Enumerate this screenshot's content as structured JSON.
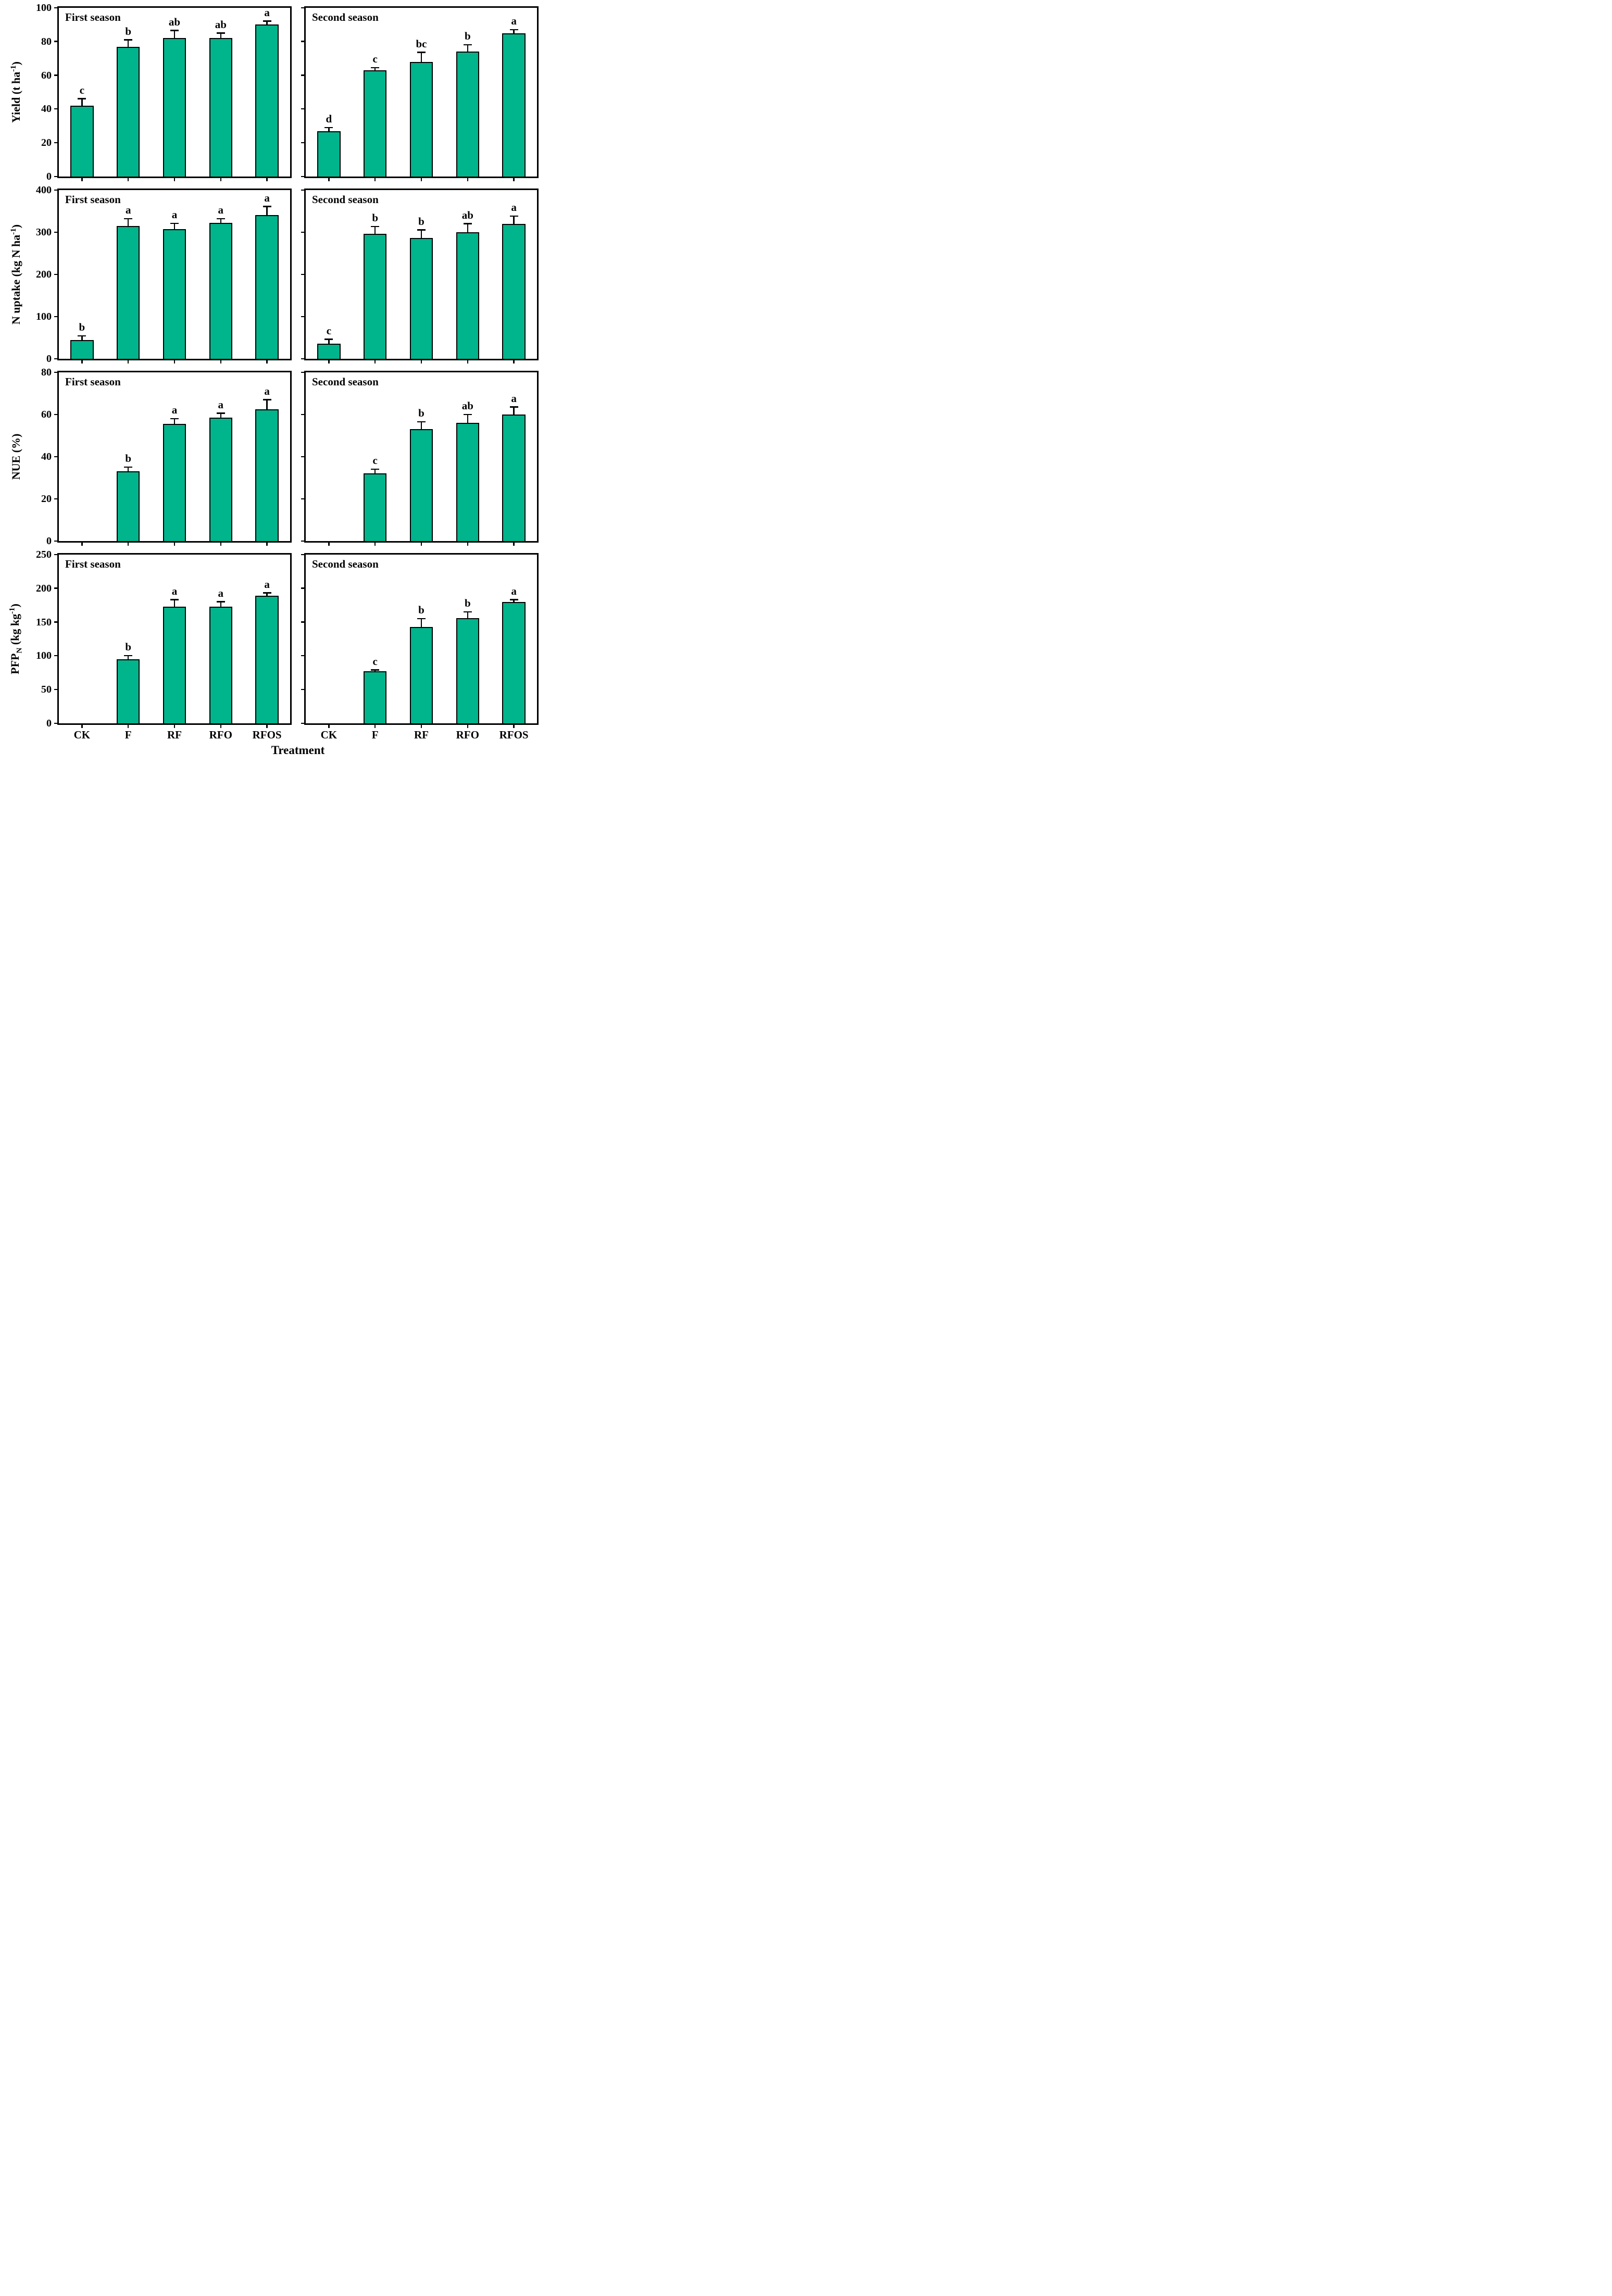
{
  "figure": {
    "xlabel": "Treatment",
    "bar_color": "#00b48c",
    "axis_color": "#000000",
    "background": "#ffffff"
  },
  "chart_data": [
    {
      "type": "bar",
      "metric": "Yield",
      "ylabel": "Yield (t ha-1)",
      "ylabel_parts": [
        {
          "text": "Yield (t ha"
        },
        {
          "text": "-1",
          "sup": true
        },
        {
          "text": ")"
        }
      ],
      "ylim": [
        0,
        100
      ],
      "yticks": [
        0,
        20,
        40,
        60,
        80,
        100
      ],
      "categories": [
        "CK",
        "F",
        "RF",
        "RFO",
        "RFOS"
      ],
      "panels": [
        {
          "season": "First season",
          "values": [
            42,
            77,
            82,
            82,
            90
          ],
          "errors": [
            4,
            4,
            4.5,
            3,
            2
          ],
          "letters": [
            "c",
            "b",
            "ab",
            "ab",
            "a"
          ]
        },
        {
          "season": "Second season",
          "values": [
            27,
            63,
            68,
            74,
            85
          ],
          "errors": [
            2,
            1.5,
            5.5,
            4,
            2
          ],
          "letters": [
            "d",
            "c",
            "bc",
            "b",
            "a"
          ]
        }
      ]
    },
    {
      "type": "bar",
      "metric": "N uptake",
      "ylabel": "N uptake (kg N ha-1)",
      "ylabel_parts": [
        {
          "text": "N uptake (kg N ha"
        },
        {
          "text": "-1",
          "sup": true
        },
        {
          "text": ")"
        }
      ],
      "ylim": [
        0,
        400
      ],
      "yticks": [
        0,
        100,
        200,
        300,
        400
      ],
      "categories": [
        "CK",
        "F",
        "RF",
        "RFO",
        "RFOS"
      ],
      "panels": [
        {
          "season": "First season",
          "values": [
            44,
            315,
            308,
            322,
            341
          ],
          "errors": [
            10,
            17,
            13,
            10,
            20
          ],
          "letters": [
            "b",
            "a",
            "a",
            "a",
            "a"
          ]
        },
        {
          "season": "Second season",
          "values": [
            36,
            296,
            286,
            300,
            320
          ],
          "errors": [
            10,
            17,
            19,
            20,
            18
          ],
          "letters": [
            "c",
            "b",
            "b",
            "ab",
            "a"
          ]
        }
      ]
    },
    {
      "type": "bar",
      "metric": "NUE",
      "ylabel": "NUE (%)",
      "ylabel_parts": [
        {
          "text": "NUE (%)"
        }
      ],
      "ylim": [
        0,
        80
      ],
      "yticks": [
        0,
        20,
        40,
        60,
        80
      ],
      "categories": [
        "CK",
        "F",
        "RF",
        "RFO",
        "RFOS"
      ],
      "panels": [
        {
          "season": "First season",
          "values": [
            0,
            33,
            55.5,
            58.5,
            62.5
          ],
          "errors": [
            0,
            2,
            2.5,
            2,
            4.5
          ],
          "letters": [
            "",
            "b",
            "a",
            "a",
            "a"
          ]
        },
        {
          "season": "Second season",
          "values": [
            0,
            32,
            53,
            56,
            60
          ],
          "errors": [
            0,
            2,
            3.5,
            4,
            3.5
          ],
          "letters": [
            "",
            "c",
            "b",
            "ab",
            "a"
          ]
        }
      ]
    },
    {
      "type": "bar",
      "metric": "PFPN",
      "ylabel": "PFPN (kg kg-1)",
      "ylabel_parts": [
        {
          "text": "PFP"
        },
        {
          "text": "N",
          "sub": true
        },
        {
          "text": " (kg kg"
        },
        {
          "text": "-1",
          "sup": true
        },
        {
          "text": ")"
        }
      ],
      "ylim": [
        0,
        250
      ],
      "yticks": [
        0,
        50,
        100,
        150,
        200,
        250
      ],
      "categories": [
        "CK",
        "F",
        "RF",
        "RFO",
        "RFOS"
      ],
      "panels": [
        {
          "season": "First season",
          "values": [
            0,
            95,
            173,
            173,
            189
          ],
          "errors": [
            0,
            5,
            10,
            7,
            4
          ],
          "letters": [
            "",
            "b",
            "a",
            "a",
            "a"
          ]
        },
        {
          "season": "Second season",
          "values": [
            0,
            77,
            143,
            156,
            180
          ],
          "errors": [
            0,
            2,
            12,
            9,
            3
          ],
          "letters": [
            "",
            "c",
            "b",
            "b",
            "a"
          ]
        }
      ]
    }
  ]
}
